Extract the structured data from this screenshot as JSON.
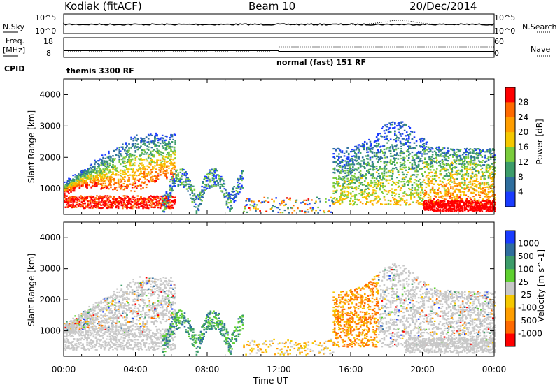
{
  "header": {
    "station": "Kodiak (fitACF)",
    "beam": "Beam 10",
    "date": "20/Dec/2014"
  },
  "strip_labels": {
    "nsky": "N.Sky",
    "nsearch": "N.Search",
    "freq": "Freq.",
    "freq_unit": "[MHz]",
    "nave": "Nave",
    "cpid": "CPID",
    "nsky_ticks": [
      "10^5",
      "10^0"
    ],
    "nsearch_ticks": [
      "10^5",
      "10^0"
    ],
    "freq_ticks": [
      "18",
      "8"
    ],
    "nave_ticks": [
      "60",
      "0"
    ]
  },
  "cpid_segments": [
    "themis 3300 RF",
    "normal (fast) 151 RF"
  ],
  "chart_data": [
    {
      "type": "heatmap",
      "title": "",
      "ylabel": "Slant Range [km]",
      "xlabel": "",
      "ylim": [
        180,
        4500
      ],
      "xlim": [
        0,
        24
      ],
      "yticks": [
        "1000",
        "2000",
        "3000",
        "4000"
      ],
      "colorbar": {
        "label": "Power [dB]",
        "ticks": [
          "28",
          "24",
          "20",
          "16",
          "12",
          "8",
          "4"
        ],
        "colors": [
          "#ff0000",
          "#ff6a00",
          "#ff9e00",
          "#f5c800",
          "#7acc3c",
          "#3c9c6a",
          "#2e6e9e",
          "#1a3cff"
        ]
      },
      "series": [
        {
          "t": [
            0,
            0.5,
            1,
            1.5,
            2,
            2.5,
            3,
            3.5,
            4,
            4.5,
            5,
            5.5,
            6,
            6.5,
            7,
            7.5,
            8,
            8.5,
            9,
            9.5
          ],
          "range_band_center_km": [
            1100,
            1150,
            1200,
            1250,
            1300,
            1350,
            1500,
            1550,
            1600,
            1400,
            1300,
            1200,
            1050,
            1000,
            950,
            900,
            900,
            850,
            850,
            900
          ]
        }
      ]
    },
    {
      "type": "heatmap",
      "title": "",
      "ylabel": "Slant Range [km]",
      "xlabel": "Time UT",
      "ylim": [
        180,
        4500
      ],
      "xlim": [
        0,
        24
      ],
      "yticks": [
        "1000",
        "2000",
        "3000",
        "4000"
      ],
      "colorbar": {
        "label": "Velocity [m s^-1]",
        "ticks": [
          "1000",
          "500",
          "100",
          "25",
          "-25",
          "-100",
          "-500",
          "-1000"
        ],
        "colors": [
          "#1a3cff",
          "#2f6e9e",
          "#3c9c6a",
          "#5fd030",
          "#c8c8c8",
          "#f5c800",
          "#ff9e00",
          "#ff6a00",
          "#ff0000"
        ]
      }
    }
  ],
  "x_ticks": [
    "00:00",
    "04:00",
    "08:00",
    "12:00",
    "16:00",
    "20:00",
    "00:00"
  ],
  "x_label": "Time UT"
}
